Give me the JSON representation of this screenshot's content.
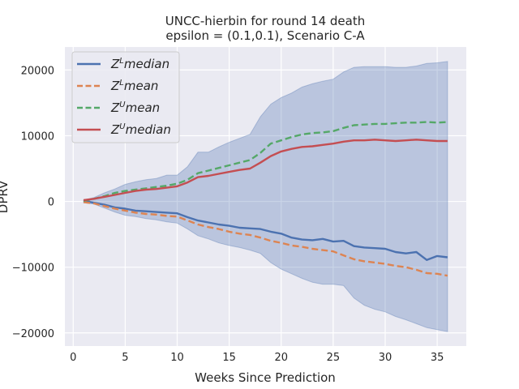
{
  "chart_data": {
    "type": "line",
    "title": "UNCC-hierbin for round 14 death",
    "subtitle": "epsilon = (0.1,0.1), Scenario C-A",
    "xlabel": "Weeks Since Prediction",
    "ylabel": "DPRV",
    "xlim": [
      -0.8,
      37.8
    ],
    "ylim": [
      -22000,
      23500
    ],
    "xticks": [
      0,
      5,
      10,
      15,
      20,
      25,
      30,
      35
    ],
    "yticks": [
      -20000,
      -10000,
      0,
      10000,
      20000
    ],
    "ytick_labels": [
      "−20000",
      "−10000",
      "0",
      "10000",
      "20000"
    ],
    "grid": true,
    "legend_position": "top-left",
    "x": [
      1,
      2,
      3,
      4,
      5,
      6,
      7,
      8,
      9,
      10,
      11,
      12,
      13,
      14,
      15,
      16,
      17,
      18,
      19,
      20,
      21,
      22,
      23,
      24,
      25,
      26,
      27,
      28,
      29,
      30,
      31,
      32,
      33,
      34,
      35,
      36
    ],
    "series": [
      {
        "name": "Z^L median",
        "legend_main": "Z",
        "legend_sup": "L",
        "legend_rest": "median",
        "color": "#4c72b0",
        "dash": "solid",
        "values": [
          100,
          -200,
          -500,
          -900,
          -1100,
          -1400,
          -1500,
          -1600,
          -1700,
          -1800,
          -2400,
          -2900,
          -3200,
          -3500,
          -3700,
          -4000,
          -4100,
          -4200,
          -4600,
          -4900,
          -5500,
          -5800,
          -5900,
          -5700,
          -6100,
          -6000,
          -6800,
          -7000,
          -7100,
          -7200,
          -7700,
          -7900,
          -7700,
          -8900,
          -8300,
          -8500
        ]
      },
      {
        "name": "Z^L mean",
        "legend_main": "Z",
        "legend_sup": "L",
        "legend_rest": "mean",
        "color": "#dd8452",
        "dash": "dashed",
        "values": [
          -100,
          -300,
          -700,
          -1100,
          -1400,
          -1700,
          -1900,
          -2000,
          -2200,
          -2300,
          -2900,
          -3500,
          -3900,
          -4200,
          -4600,
          -4900,
          -5100,
          -5500,
          -6000,
          -6300,
          -6700,
          -6900,
          -7200,
          -7400,
          -7600,
          -8200,
          -8800,
          -9100,
          -9300,
          -9500,
          -9800,
          -10000,
          -10400,
          -10900,
          -11000,
          -11300
        ]
      },
      {
        "name": "Z^U mean",
        "legend_main": "Z",
        "legend_sup": "U",
        "legend_rest": "mean",
        "color": "#55a868",
        "dash": "dashed",
        "values": [
          100,
          400,
          800,
          1300,
          1600,
          1800,
          2000,
          2200,
          2400,
          2700,
          3300,
          4300,
          4700,
          5100,
          5500,
          5900,
          6300,
          7400,
          8800,
          9300,
          9800,
          10200,
          10400,
          10500,
          10700,
          11200,
          11600,
          11700,
          11800,
          11800,
          11900,
          12000,
          12000,
          12100,
          12000,
          12100
        ]
      },
      {
        "name": "Z^U median",
        "legend_main": "Z",
        "legend_sup": "U",
        "legend_rest": "median",
        "color": "#c44e52",
        "dash": "solid",
        "values": [
          200,
          400,
          700,
          1000,
          1300,
          1600,
          1800,
          1900,
          2100,
          2300,
          2900,
          3700,
          3900,
          4200,
          4500,
          4800,
          5000,
          5900,
          6900,
          7600,
          8000,
          8300,
          8400,
          8600,
          8800,
          9100,
          9300,
          9300,
          9400,
          9300,
          9200,
          9300,
          9400,
          9300,
          9200,
          9200
        ]
      }
    ],
    "band": {
      "color": "#4c72b0",
      "upper": [
        200,
        600,
        1300,
        1900,
        2600,
        3000,
        3300,
        3500,
        4000,
        4000,
        5300,
        7500,
        7500,
        8300,
        9000,
        9600,
        10200,
        12900,
        14800,
        15800,
        16500,
        17400,
        17900,
        18300,
        18600,
        19700,
        20400,
        20500,
        20500,
        20500,
        20400,
        20400,
        20600,
        21000,
        21100,
        21300
      ],
      "lower": [
        -200,
        -400,
        -1000,
        -1600,
        -2100,
        -2300,
        -2600,
        -2800,
        -3100,
        -3300,
        -4200,
        -5200,
        -5700,
        -6300,
        -6700,
        -7000,
        -7400,
        -7900,
        -9300,
        -10300,
        -11000,
        -11700,
        -12300,
        -12600,
        -12600,
        -12800,
        -14700,
        -15800,
        -16400,
        -16800,
        -17500,
        -18000,
        -18600,
        -19200,
        -19500,
        -19800
      ]
    }
  }
}
